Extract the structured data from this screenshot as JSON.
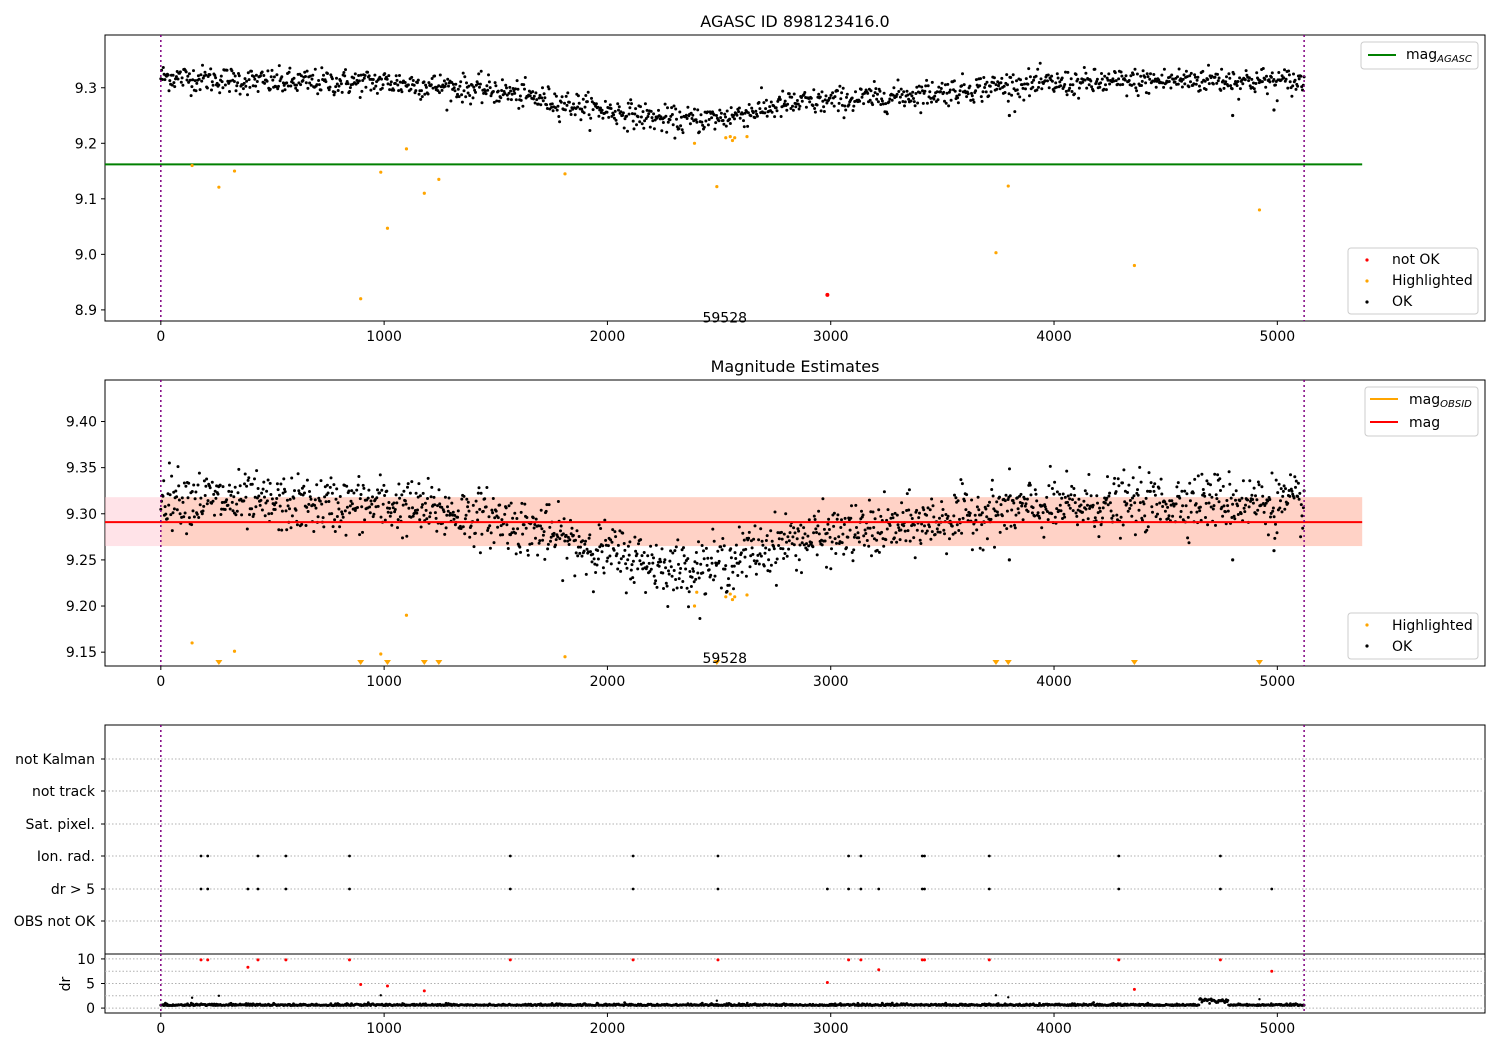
{
  "chart_data": [
    {
      "type": "scatter",
      "title": "AGASC ID 898123416.0",
      "xlim": [
        -250,
        5930
      ],
      "ylim": [
        8.88,
        9.395
      ],
      "xticks": [
        0,
        1000,
        2000,
        3000,
        4000,
        5000
      ],
      "yticks": [
        8.9,
        9.0,
        9.1,
        9.2,
        9.3
      ],
      "vlines": [
        0,
        5120
      ],
      "hline": {
        "label": "mag_AGASC",
        "value": 9.162,
        "xrange": [
          -250,
          5380
        ],
        "color": "#008000"
      },
      "annotation": {
        "text": "59528",
        "x": 2560,
        "y": 8.895
      },
      "trend": {
        "x": [
          0,
          500,
          1000,
          1500,
          1900,
          2300,
          2500,
          2800,
          3300,
          3800,
          4300,
          4700,
          5120
        ],
        "y": [
          9.32,
          9.31,
          9.31,
          9.295,
          9.265,
          9.24,
          9.245,
          9.27,
          9.285,
          9.305,
          9.31,
          9.315,
          9.31
        ],
        "noise": 0.012,
        "n": 1400
      },
      "series": [
        {
          "name": "not OK",
          "color": "#ff0000",
          "points": [
            [
              2985,
              8.927
            ]
          ]
        },
        {
          "name": "Highlighted",
          "color": "#ffa500",
          "points": [
            [
              140,
              9.16
            ],
            [
              260,
              9.121
            ],
            [
              330,
              9.15
            ],
            [
              895,
              8.92
            ],
            [
              985,
              9.148
            ],
            [
              1015,
              9.047
            ],
            [
              1100,
              9.19
            ],
            [
              1180,
              9.11
            ],
            [
              1245,
              9.135
            ],
            [
              1810,
              9.145
            ],
            [
              2390,
              9.2
            ],
            [
              2490,
              9.122
            ],
            [
              2530,
              9.21
            ],
            [
              2550,
              9.212
            ],
            [
              2560,
              9.205
            ],
            [
              2570,
              9.21
            ],
            [
              2625,
              9.212
            ],
            [
              3740,
              9.003
            ],
            [
              3795,
              9.123
            ],
            [
              4360,
              8.98
            ],
            [
              4920,
              9.08
            ]
          ]
        },
        {
          "name": "OK",
          "color": "#000000",
          "points": [
            [
              4800,
              9.25
            ],
            [
              4985,
              9.26
            ],
            [
              3800,
              9.25
            ]
          ]
        }
      ],
      "legend_top": [
        "mag_AGASC"
      ],
      "legend_bottom": [
        "not OK",
        "Highlighted",
        "OK"
      ]
    },
    {
      "type": "scatter",
      "title": "Magnitude Estimates",
      "xlim": [
        -250,
        5930
      ],
      "ylim": [
        9.135,
        9.445
      ],
      "xticks": [
        0,
        1000,
        2000,
        3000,
        4000,
        5000
      ],
      "yticks": [
        9.15,
        9.2,
        9.25,
        9.3,
        9.35,
        9.4
      ],
      "vlines": [
        0,
        5120
      ],
      "mag": {
        "label": "mag",
        "value": 9.291,
        "band": [
          9.265,
          9.318
        ],
        "color": "#ff0000"
      },
      "mag_obsid": {
        "label": "mag_OBSID",
        "color": "#ffa500"
      },
      "annotation": {
        "text": "59528",
        "x": 2560,
        "y": 9.145
      },
      "trend": {
        "x": [
          0,
          500,
          1000,
          1500,
          1900,
          2300,
          2500,
          2800,
          3300,
          3800,
          4300,
          4700,
          5120
        ],
        "y": [
          9.32,
          9.31,
          9.31,
          9.295,
          9.265,
          9.24,
          9.245,
          9.27,
          9.285,
          9.305,
          9.31,
          9.315,
          9.31
        ],
        "noise": 0.015,
        "n": 1600
      },
      "series": [
        {
          "name": "Highlighted",
          "color": "#ffa500",
          "points": [
            [
              140,
              9.16
            ],
            [
              330,
              9.151
            ],
            [
              985,
              9.148
            ],
            [
              1100,
              9.19
            ],
            [
              1810,
              9.145
            ],
            [
              2390,
              9.2
            ],
            [
              2400,
              9.215
            ],
            [
              2530,
              9.21
            ],
            [
              2550,
              9.213
            ],
            [
              2560,
              9.207
            ],
            [
              2570,
              9.21
            ],
            [
              2625,
              9.212
            ]
          ]
        },
        {
          "name": "OK",
          "color": "#000000",
          "points": [
            [
              4800,
              9.25
            ],
            [
              4985,
              9.26
            ],
            [
              3800,
              9.25
            ]
          ]
        }
      ],
      "below_range_markers": [
        260,
        895,
        1015,
        1180,
        1245,
        2490,
        3740,
        3795,
        4360,
        4920
      ],
      "legend": [
        "mag_OBSID",
        "mag",
        "Highlighted",
        "OK"
      ]
    },
    {
      "type": "scatter",
      "xlim": [
        -250,
        5930
      ],
      "xticks": [
        0,
        1000,
        2000,
        3000,
        4000,
        5000
      ],
      "vlines": [
        0,
        5120
      ],
      "flag_rows": [
        "not Kalman",
        "not track",
        "Sat. pixel.",
        "Ion. rad.",
        "dr > 5",
        "OBS not OK"
      ],
      "flag_points": {
        "Ion. rad.": [
          180,
          210,
          435,
          560,
          845,
          1565,
          2115,
          2495,
          3080,
          3135,
          3410,
          3420,
          3710,
          4290,
          4745
        ],
        "dr > 5": [
          180,
          210,
          390,
          435,
          560,
          845,
          1565,
          2115,
          2495,
          2985,
          3080,
          3135,
          3215,
          3410,
          3420,
          3710,
          4290,
          4745,
          4975
        ]
      },
      "dr_panel": {
        "ylabel": "dr",
        "ylim": [
          -1,
          11
        ],
        "yticks": [
          0,
          5,
          10
        ],
        "red_points": [
          [
            180,
            9.8
          ],
          [
            210,
            9.8
          ],
          [
            390,
            8.3
          ],
          [
            435,
            9.8
          ],
          [
            560,
            9.8
          ],
          [
            845,
            9.8
          ],
          [
            895,
            4.8
          ],
          [
            1015,
            4.5
          ],
          [
            1180,
            3.5
          ],
          [
            1565,
            9.8
          ],
          [
            2115,
            9.8
          ],
          [
            2495,
            9.8
          ],
          [
            2985,
            5.2
          ],
          [
            3080,
            9.8
          ],
          [
            3135,
            9.8
          ],
          [
            3215,
            7.8
          ],
          [
            3410,
            9.8
          ],
          [
            3420,
            9.8
          ],
          [
            3710,
            9.8
          ],
          [
            4290,
            9.8
          ],
          [
            4360,
            3.8
          ],
          [
            4745,
            9.8
          ],
          [
            4975,
            7.5
          ]
        ],
        "black_points": [
          [
            140,
            2.1
          ],
          [
            260,
            2.5
          ],
          [
            985,
            2.6
          ],
          [
            3740,
            2.6
          ],
          [
            3795,
            2.2
          ],
          [
            4920,
            1.8
          ],
          [
            2490,
            1.5
          ]
        ],
        "baseline": {
          "mean": 0.5,
          "noise": 0.3,
          "n": 1500
        }
      }
    }
  ]
}
